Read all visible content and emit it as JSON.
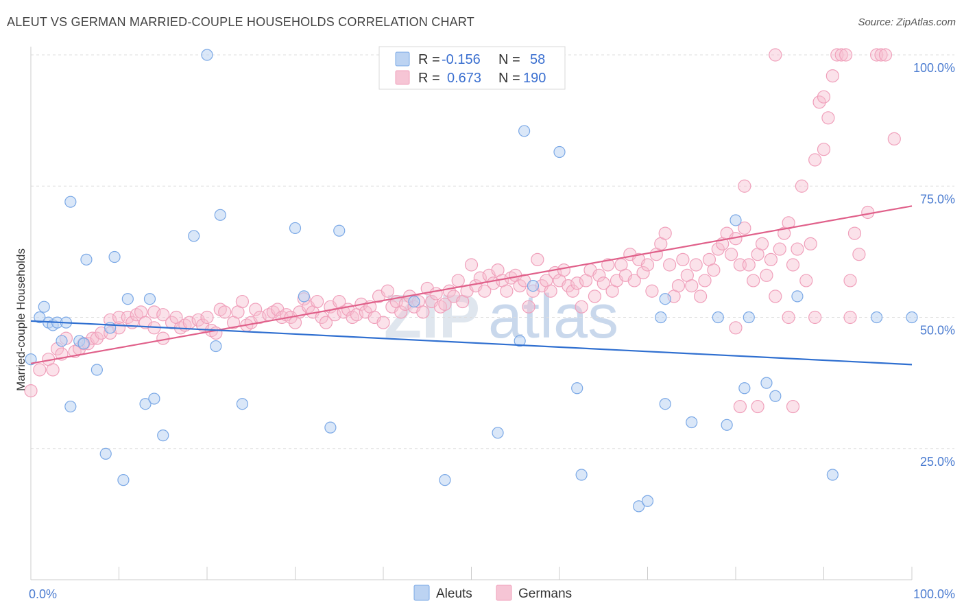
{
  "header": {
    "title": "ALEUT VS GERMAN MARRIED-COUPLE HOUSEHOLDS CORRELATION CHART",
    "source": "Source: ZipAtlas.com"
  },
  "legend_top": {
    "row1": {
      "r_label": "R =",
      "r_value": "-0.156",
      "n_label": "N =",
      "n_value": "58"
    },
    "row2": {
      "r_label": "R =",
      "r_value": "0.673",
      "n_label": "N =",
      "n_value": "190"
    }
  },
  "legend_bottom": {
    "aleuts": "Aleuts",
    "germans": "Germans"
  },
  "watermark": {
    "part1": "ZIP",
    "part2": "atlas"
  },
  "colors": {
    "aleuts": "#7aa8e6",
    "aleuts_line": "#2f6fd0",
    "germans": "#f0a0bb",
    "germans_line": "#e0608a"
  },
  "chart_data": {
    "type": "scatter",
    "title": "ALEUT VS GERMAN MARRIED-COUPLE HOUSEHOLDS CORRELATION CHART",
    "ylabel": "Married-couple Households",
    "xlabel": "",
    "xlim": [
      0,
      100
    ],
    "ylim": [
      0,
      100
    ],
    "x_tick_labels": {
      "left": "0.0%",
      "right": "100.0%"
    },
    "y_tick_labels": [
      "25.0%",
      "50.0%",
      "75.0%",
      "100.0%"
    ],
    "y_tick_values": [
      25,
      50,
      75,
      100
    ],
    "grid": true,
    "legend_position": "top-center",
    "series": [
      {
        "name": "Aleuts",
        "r": -0.156,
        "n": 58,
        "trend": [
          [
            0,
            49.3
          ],
          [
            100,
            41.0
          ]
        ],
        "points": [
          [
            0,
            42
          ],
          [
            1,
            50
          ],
          [
            1.5,
            52
          ],
          [
            2,
            49
          ],
          [
            2.5,
            48.5
          ],
          [
            3,
            49
          ],
          [
            3.5,
            45.5
          ],
          [
            4,
            49
          ],
          [
            4.5,
            33
          ],
          [
            4.5,
            72
          ],
          [
            5.5,
            45.5
          ],
          [
            6,
            45
          ],
          [
            6.3,
            61
          ],
          [
            7.5,
            40
          ],
          [
            8.5,
            24
          ],
          [
            9,
            48
          ],
          [
            9.5,
            61.5
          ],
          [
            10.5,
            19
          ],
          [
            11,
            53.5
          ],
          [
            13,
            33.5
          ],
          [
            13.5,
            53.5
          ],
          [
            14,
            34.5
          ],
          [
            15,
            27.5
          ],
          [
            18.5,
            65.5
          ],
          [
            20,
            100
          ],
          [
            21,
            44.5
          ],
          [
            21.5,
            69.5
          ],
          [
            24,
            33.5
          ],
          [
            30,
            67
          ],
          [
            31,
            54
          ],
          [
            34,
            29
          ],
          [
            35,
            66.5
          ],
          [
            43.5,
            53
          ],
          [
            47,
            19
          ],
          [
            53,
            28
          ],
          [
            55.5,
            45.5
          ],
          [
            56,
            85.5
          ],
          [
            57,
            56
          ],
          [
            60,
            81.5
          ],
          [
            62,
            36.5
          ],
          [
            62.5,
            20
          ],
          [
            69,
            14
          ],
          [
            70,
            15
          ],
          [
            71.5,
            50
          ],
          [
            72,
            53.5
          ],
          [
            72,
            33.5
          ],
          [
            75,
            30
          ],
          [
            78,
            50
          ],
          [
            79,
            29.5
          ],
          [
            80,
            68.5
          ],
          [
            81,
            36.5
          ],
          [
            81.5,
            50
          ],
          [
            83.5,
            37.5
          ],
          [
            84.5,
            35
          ],
          [
            87,
            54
          ],
          [
            91,
            20
          ],
          [
            96,
            50
          ],
          [
            100,
            50
          ]
        ]
      },
      {
        "name": "Germans",
        "r": 0.673,
        "n": 190,
        "trend": [
          [
            0,
            41.2
          ],
          [
            100,
            71.2
          ]
        ],
        "points": [
          [
            0,
            36
          ],
          [
            1,
            40
          ],
          [
            2,
            42
          ],
          [
            2.5,
            40
          ],
          [
            3,
            44
          ],
          [
            3.5,
            43
          ],
          [
            4,
            46
          ],
          [
            5,
            43.5
          ],
          [
            5.5,
            44
          ],
          [
            6,
            45
          ],
          [
            6.5,
            45
          ],
          [
            7,
            46
          ],
          [
            7.5,
            46
          ],
          [
            8,
            47
          ],
          [
            9,
            47
          ],
          [
            9,
            49.5
          ],
          [
            10,
            48
          ],
          [
            10,
            50
          ],
          [
            11,
            50
          ],
          [
            11.5,
            49
          ],
          [
            12,
            50.5
          ],
          [
            12.5,
            51
          ],
          [
            13,
            49
          ],
          [
            14,
            48
          ],
          [
            14,
            51
          ],
          [
            15,
            46
          ],
          [
            15,
            50.5
          ],
          [
            16,
            49
          ],
          [
            16.5,
            50
          ],
          [
            17,
            48
          ],
          [
            17.5,
            48.5
          ],
          [
            18,
            49
          ],
          [
            19,
            49.5
          ],
          [
            19.5,
            48.5
          ],
          [
            20,
            50
          ],
          [
            20.5,
            47.5
          ],
          [
            21,
            47
          ],
          [
            21.5,
            51.5
          ],
          [
            22,
            51
          ],
          [
            23,
            49
          ],
          [
            23.5,
            51
          ],
          [
            24,
            53
          ],
          [
            24.5,
            48.5
          ],
          [
            25,
            49
          ],
          [
            25.5,
            51.5
          ],
          [
            26,
            50
          ],
          [
            27,
            50.5
          ],
          [
            27.5,
            51
          ],
          [
            28,
            51.5
          ],
          [
            28.5,
            50
          ],
          [
            29,
            50.5
          ],
          [
            29.5,
            50
          ],
          [
            30,
            49
          ],
          [
            30.5,
            51
          ],
          [
            31,
            53.5
          ],
          [
            31.5,
            52
          ],
          [
            32,
            51
          ],
          [
            32.5,
            53
          ],
          [
            33,
            50
          ],
          [
            33.5,
            49
          ],
          [
            34,
            52
          ],
          [
            34.5,
            50.5
          ],
          [
            35,
            53
          ],
          [
            35.5,
            51
          ],
          [
            36,
            51.5
          ],
          [
            36.5,
            50
          ],
          [
            37,
            50.5
          ],
          [
            37.5,
            52.5
          ],
          [
            38,
            51
          ],
          [
            38.5,
            52
          ],
          [
            39,
            50
          ],
          [
            39.5,
            54
          ],
          [
            40,
            49
          ],
          [
            40.5,
            55
          ],
          [
            41,
            52
          ],
          [
            41.5,
            53
          ],
          [
            42,
            51
          ],
          [
            42.5,
            52.5
          ],
          [
            43,
            54
          ],
          [
            43.5,
            52
          ],
          [
            44,
            53
          ],
          [
            44.5,
            51
          ],
          [
            45,
            55.5
          ],
          [
            45.5,
            53
          ],
          [
            46,
            54.5
          ],
          [
            46.5,
            52
          ],
          [
            47,
            52.5
          ],
          [
            47.5,
            55
          ],
          [
            48,
            54
          ],
          [
            48.5,
            57
          ],
          [
            49,
            53
          ],
          [
            49.5,
            55
          ],
          [
            50,
            60
          ],
          [
            50.5,
            56
          ],
          [
            51,
            57.5
          ],
          [
            51.5,
            55
          ],
          [
            52,
            58
          ],
          [
            52.5,
            56.5
          ],
          [
            53,
            59
          ],
          [
            53.5,
            57
          ],
          [
            54,
            55
          ],
          [
            54.5,
            57.5
          ],
          [
            55,
            58
          ],
          [
            55.5,
            56
          ],
          [
            56,
            57
          ],
          [
            56.5,
            52
          ],
          [
            57,
            55
          ],
          [
            57.5,
            61
          ],
          [
            58,
            56
          ],
          [
            58.5,
            57
          ],
          [
            59,
            55
          ],
          [
            59.5,
            58.5
          ],
          [
            60,
            57
          ],
          [
            60.5,
            59
          ],
          [
            61,
            56
          ],
          [
            61.5,
            55
          ],
          [
            62,
            56.5
          ],
          [
            62.5,
            52
          ],
          [
            63,
            57
          ],
          [
            63.5,
            59
          ],
          [
            64,
            54
          ],
          [
            64.5,
            58
          ],
          [
            65,
            56.5
          ],
          [
            65.5,
            60
          ],
          [
            66,
            55
          ],
          [
            66.5,
            57
          ],
          [
            67,
            60
          ],
          [
            67.5,
            58
          ],
          [
            68,
            62
          ],
          [
            68.5,
            57
          ],
          [
            69,
            61
          ],
          [
            69.5,
            58.5
          ],
          [
            70,
            60
          ],
          [
            70.5,
            55
          ],
          [
            71,
            62
          ],
          [
            71.5,
            64
          ],
          [
            72,
            66
          ],
          [
            72.5,
            60
          ],
          [
            73,
            54
          ],
          [
            73.5,
            56
          ],
          [
            74,
            61
          ],
          [
            74.5,
            58
          ],
          [
            75,
            56
          ],
          [
            75.5,
            60
          ],
          [
            76,
            54
          ],
          [
            76.5,
            57
          ],
          [
            77,
            61
          ],
          [
            77.5,
            59
          ],
          [
            78,
            63
          ],
          [
            78.5,
            64
          ],
          [
            79,
            66
          ],
          [
            79.5,
            62
          ],
          [
            80,
            65
          ],
          [
            80.5,
            60
          ],
          [
            81,
            67
          ],
          [
            81.5,
            60
          ],
          [
            82,
            57
          ],
          [
            82.5,
            62
          ],
          [
            83,
            64
          ],
          [
            83.5,
            58
          ],
          [
            84,
            61
          ],
          [
            84.5,
            54
          ],
          [
            85,
            63
          ],
          [
            85.5,
            66
          ],
          [
            86,
            68
          ],
          [
            86.5,
            60
          ],
          [
            87,
            63
          ],
          [
            87.5,
            75
          ],
          [
            88,
            57
          ],
          [
            88.5,
            64
          ],
          [
            89,
            80
          ],
          [
            89.5,
            91
          ],
          [
            90,
            92
          ],
          [
            90.5,
            88
          ],
          [
            91,
            96
          ],
          [
            91.5,
            100
          ],
          [
            92,
            100
          ],
          [
            92.5,
            100
          ],
          [
            93,
            57
          ],
          [
            93.5,
            66
          ],
          [
            94,
            62
          ],
          [
            95,
            70
          ],
          [
            96,
            100
          ],
          [
            96.5,
            100
          ],
          [
            97,
            100
          ],
          [
            98,
            84
          ],
          [
            80.5,
            33
          ],
          [
            82.5,
            33
          ],
          [
            86.5,
            33
          ],
          [
            90,
            82
          ],
          [
            89,
            50
          ],
          [
            93,
            50
          ],
          [
            80,
            48
          ],
          [
            86,
            50
          ],
          [
            81,
            75
          ],
          [
            84.5,
            100
          ]
        ]
      }
    ]
  }
}
